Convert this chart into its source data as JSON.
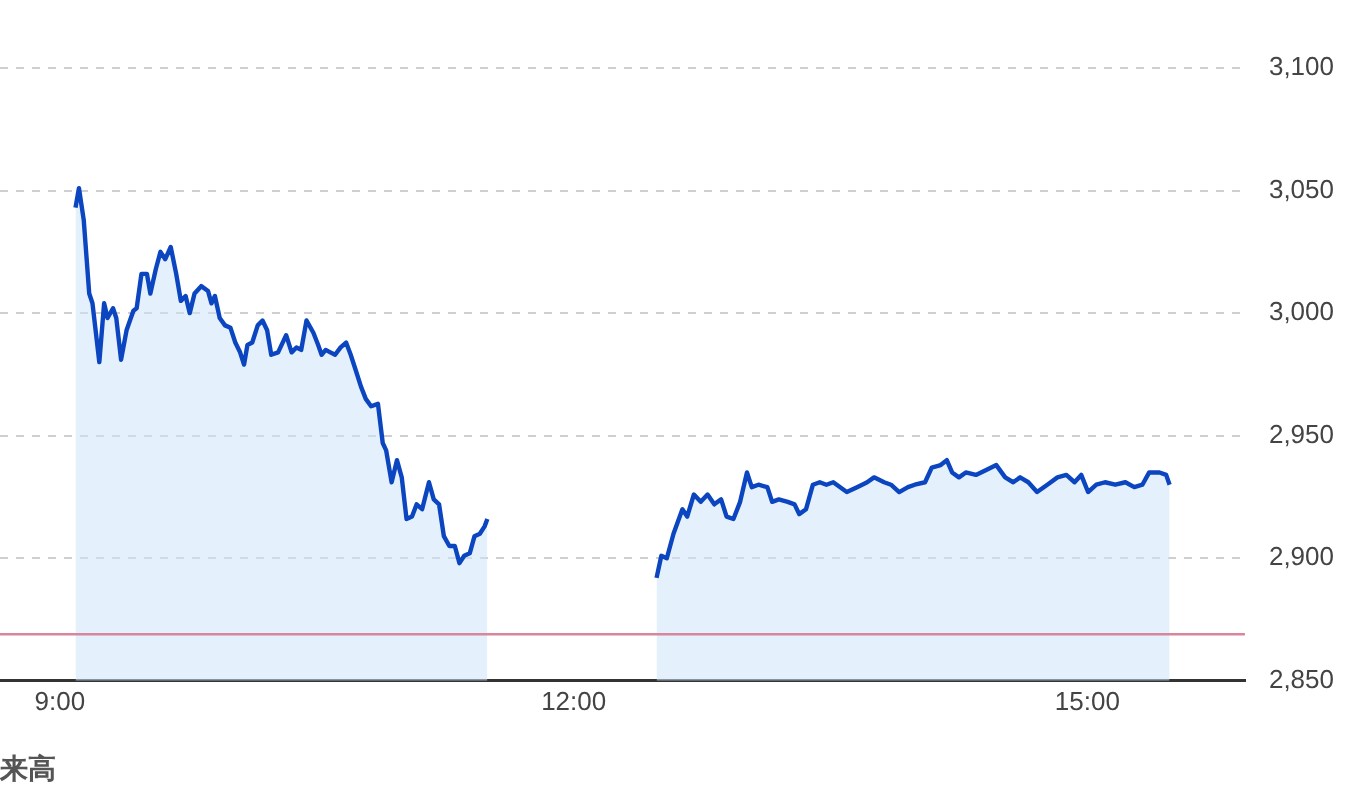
{
  "chart_data": {
    "type": "area",
    "annotations": [
      "来高"
    ],
    "xlim": [
      8.65,
      15.92
    ],
    "xticks": [
      {
        "value": 9,
        "label": "9:00"
      },
      {
        "value": 12,
        "label": "12:00"
      },
      {
        "value": 15,
        "label": "15:00"
      }
    ],
    "ylim": [
      2850,
      3100
    ],
    "yticks": [
      {
        "value": 2850,
        "label": "2,850"
      },
      {
        "value": 2900,
        "label": "2,900"
      },
      {
        "value": 2950,
        "label": "2,950"
      },
      {
        "value": 3000,
        "label": "3,000"
      },
      {
        "value": 3050,
        "label": "3,050"
      },
      {
        "value": 3100,
        "label": "3,100"
      }
    ],
    "grid": "y",
    "legend": false,
    "marker": "none",
    "line_style": "solid",
    "ref_lines": [
      {
        "axis": "y",
        "value": 2869,
        "color": "#d8869c"
      }
    ],
    "series": [
      {
        "color": "#0b45c0",
        "x": [
          9.091,
          9.111,
          9.139,
          9.171,
          9.19,
          9.23,
          9.258,
          9.278,
          9.31,
          9.329,
          9.357,
          9.389,
          9.429,
          9.448,
          9.476,
          9.508,
          9.528,
          9.56,
          9.587,
          9.615,
          9.647,
          9.679,
          9.706,
          9.734,
          9.758,
          9.786,
          9.825,
          9.865,
          9.885,
          9.905,
          9.933,
          9.964,
          9.996,
          10.024,
          10.052,
          10.075,
          10.095,
          10.123,
          10.155,
          10.183,
          10.21,
          10.234,
          10.274,
          10.321,
          10.353,
          10.381,
          10.409,
          10.44,
          10.48,
          10.508,
          10.528,
          10.552,
          10.579,
          10.607,
          10.639,
          10.671,
          10.698,
          10.726,
          10.758,
          10.786,
          10.817,
          10.857,
          10.885,
          10.905,
          10.937,
          10.968,
          10.996,
          11.024,
          11.056,
          11.083,
          11.115,
          11.155,
          11.183,
          11.214,
          11.242,
          11.274,
          11.306,
          11.333,
          11.361,
          11.393,
          11.421,
          11.452,
          11.48,
          11.496,
          12.0,
          12.484,
          12.512,
          12.544,
          12.583,
          12.635,
          12.663,
          12.702,
          12.742,
          12.782,
          12.821,
          12.861,
          12.893,
          12.933,
          12.972,
          13.012,
          13.04,
          13.079,
          13.131,
          13.159,
          13.198,
          13.25,
          13.29,
          13.317,
          13.357,
          13.397,
          13.437,
          13.476,
          13.516,
          13.595,
          13.655,
          13.714,
          13.754,
          13.813,
          13.853,
          13.901,
          13.952,
          13.992,
          14.052,
          14.091,
          14.143,
          14.179,
          14.21,
          14.25,
          14.29,
          14.349,
          14.409,
          14.468,
          14.52,
          14.567,
          14.607,
          14.655,
          14.706,
          14.766,
          14.825,
          14.877,
          14.925,
          14.964,
          15.004,
          15.052,
          15.103,
          15.163,
          15.222,
          15.274,
          15.321,
          15.361,
          15.421,
          15.46,
          15.48
        ],
        "values": [
          3043,
          3051,
          3038,
          3008,
          3004,
          2980,
          3004,
          2998,
          3002,
          2998,
          2981,
          2993,
          3001,
          3002,
          3016,
          3016,
          3008,
          3018,
          3025,
          3022,
          3027,
          3016,
          3005,
          3007,
          3000,
          3008,
          3011,
          3009,
          3004,
          3007,
          2998,
          2995,
          2994,
          2988,
          2984,
          2979,
          2987,
          2988,
          2995,
          2997,
          2993,
          2983,
          2984,
          2991,
          2984,
          2986,
          2985,
          2997,
          2992,
          2987,
          2983,
          2985,
          2984,
          2983,
          2986,
          2988,
          2983,
          2977,
          2970,
          2965,
          2962,
          2963,
          2947,
          2944,
          2931,
          2940,
          2933,
          2916,
          2917,
          2922,
          2920,
          2931,
          2924,
          2922,
          2909,
          2905,
          2905,
          2898,
          2901,
          2902,
          2909,
          2910,
          2913,
          2916,
          null,
          2892,
          2901,
          2900,
          2910,
          2920,
          2917,
          2926,
          2923,
          2926,
          2922,
          2924,
          2917,
          2916,
          2923,
          2935,
          2929,
          2930,
          2929,
          2923,
          2924,
          2923,
          2922,
          2918,
          2920,
          2930,
          2931,
          2930,
          2931,
          2927,
          2929,
          2931,
          2933,
          2931,
          2930,
          2927,
          2929,
          2930,
          2931,
          2937,
          2938,
          2940,
          2935,
          2933,
          2935,
          2934,
          2936,
          2938,
          2933,
          2931,
          2933,
          2931,
          2927,
          2930,
          2933,
          2934,
          2931,
          2934,
          2927,
          2930,
          2931,
          2930,
          2931,
          2929,
          2930,
          2935,
          2935,
          2934,
          2930
        ]
      }
    ]
  }
}
